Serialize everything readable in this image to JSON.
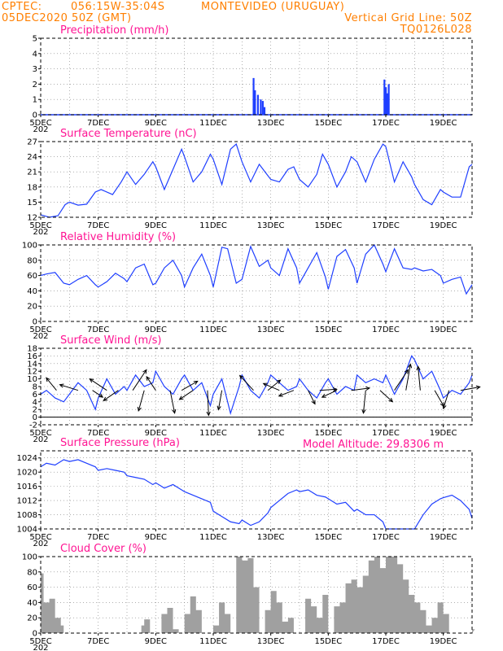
{
  "header": {
    "source": "CPTEC:",
    "coords": "056:15W-35:04S",
    "location": "MONTEVIDEO (URUGUAY)",
    "init": "05DEC2020 50Z (GMT)",
    "grid_note": "Vertical Grid Line: 50Z",
    "code": "TQ0126L028"
  },
  "x_ticks": [
    "5DEC",
    "7DEC",
    "9DEC",
    "11DEC",
    "13DEC",
    "15DEC",
    "17DEC",
    "19DEC"
  ],
  "x_year_fragment": "202",
  "model_altitude": "Model Altitude: 29.8306 m",
  "colors": {
    "header": "#ff7f00",
    "title": "#ff1493",
    "line": "#1f3fff",
    "bar": "#1f3fff",
    "cloud": "#a0a0a0"
  },
  "chart_data": [
    {
      "id": "precip",
      "type": "bar",
      "title": "Precipitation (mm/h)",
      "ylim": [
        0,
        5
      ],
      "yticks": [
        "0",
        "1",
        "2",
        "3",
        "4",
        "5"
      ],
      "x": [
        12.4,
        12.45,
        12.55,
        12.65,
        12.72,
        12.78,
        16.95,
        17.0,
        17.05,
        17.1
      ],
      "values": [
        2.4,
        1.6,
        1.3,
        1.0,
        0.9,
        0.5,
        2.3,
        1.8,
        1.4,
        2.0
      ]
    },
    {
      "id": "temp",
      "type": "line",
      "title": "Surface Temperature (nC)",
      "ylim": [
        12,
        27
      ],
      "yticks": [
        "12",
        "15",
        "18",
        "21",
        "24",
        "27"
      ],
      "x": [
        5.0,
        5.3,
        5.6,
        5.85,
        6.0,
        6.3,
        6.6,
        6.9,
        7.1,
        7.5,
        7.8,
        8.0,
        8.3,
        8.6,
        8.9,
        9.0,
        9.3,
        9.6,
        9.9,
        10.0,
        10.3,
        10.6,
        10.9,
        11.0,
        11.3,
        11.6,
        11.8,
        12.0,
        12.3,
        12.6,
        12.8,
        13.0,
        13.3,
        13.6,
        13.8,
        14.0,
        14.3,
        14.6,
        14.8,
        15.0,
        15.3,
        15.6,
        15.8,
        16.0,
        16.3,
        16.6,
        16.9,
        17.0,
        17.3,
        17.6,
        17.9,
        18.0,
        18.3,
        18.6,
        18.9,
        19.0,
        19.3,
        19.6,
        19.9,
        20.0
      ],
      "values": [
        12.5,
        12.0,
        12.3,
        14.5,
        15.0,
        14.4,
        14.6,
        17.0,
        17.5,
        16.5,
        19.0,
        21.0,
        18.5,
        20.5,
        23.0,
        22.0,
        17.5,
        21.5,
        25.5,
        24.0,
        19.0,
        21.0,
        24.5,
        23.5,
        18.5,
        25.5,
        26.5,
        23.0,
        19.0,
        22.5,
        21.0,
        19.5,
        19.0,
        21.5,
        22.0,
        19.5,
        18.0,
        20.5,
        24.5,
        22.5,
        18.0,
        21.0,
        24.0,
        23.0,
        19.0,
        23.5,
        26.5,
        26.0,
        19.0,
        23.0,
        20.0,
        18.5,
        15.5,
        14.5,
        17.5,
        17.0,
        16.0,
        16.0,
        22.0,
        22.5
      ]
    },
    {
      "id": "rh",
      "type": "line",
      "title": "Relative Humidity (%)",
      "ylim": [
        0,
        100
      ],
      "yticks": [
        "0",
        "20",
        "40",
        "60",
        "80",
        "100"
      ],
      "x": [
        5.0,
        5.2,
        5.5,
        5.8,
        6.0,
        6.3,
        6.6,
        6.9,
        7.0,
        7.3,
        7.6,
        7.9,
        8.0,
        8.3,
        8.6,
        8.9,
        9.0,
        9.3,
        9.6,
        9.9,
        10.0,
        10.3,
        10.6,
        10.9,
        11.0,
        11.3,
        11.5,
        11.8,
        12.0,
        12.3,
        12.6,
        12.9,
        13.0,
        13.3,
        13.6,
        13.9,
        14.0,
        14.3,
        14.6,
        14.9,
        15.0,
        15.3,
        15.6,
        15.9,
        16.0,
        16.3,
        16.6,
        16.9,
        17.0,
        17.3,
        17.6,
        17.9,
        18.0,
        18.3,
        18.6,
        18.9,
        19.0,
        19.3,
        19.6,
        19.8,
        20.0
      ],
      "values": [
        60,
        62,
        64,
        50,
        48,
        55,
        60,
        48,
        45,
        52,
        63,
        56,
        52,
        70,
        75,
        48,
        50,
        70,
        80,
        60,
        45,
        70,
        88,
        60,
        45,
        97,
        95,
        50,
        55,
        98,
        72,
        80,
        70,
        60,
        95,
        70,
        50,
        70,
        90,
        58,
        42,
        85,
        94,
        70,
        50,
        88,
        100,
        75,
        65,
        95,
        70,
        68,
        70,
        66,
        68,
        60,
        50,
        55,
        58,
        36,
        48
      ]
    },
    {
      "id": "wind",
      "type": "line",
      "title": "Surface Wind (m/s)",
      "ylim": [
        -2,
        18
      ],
      "yticks": [
        "-2",
        "0",
        "2",
        "4",
        "6",
        "8",
        "10",
        "12",
        "14",
        "16",
        "18"
      ],
      "x": [
        5.0,
        5.2,
        5.5,
        5.8,
        6.0,
        6.3,
        6.6,
        6.9,
        7.0,
        7.3,
        7.6,
        7.9,
        8.0,
        8.3,
        8.6,
        8.9,
        9.0,
        9.3,
        9.6,
        9.9,
        10.0,
        10.3,
        10.6,
        10.9,
        11.0,
        11.3,
        11.6,
        11.9,
        12.0,
        12.3,
        12.6,
        12.9,
        13.0,
        13.3,
        13.6,
        13.9,
        14.0,
        14.3,
        14.6,
        14.9,
        15.0,
        15.3,
        15.6,
        15.9,
        16.0,
        16.3,
        16.6,
        16.9,
        17.0,
        17.3,
        17.6,
        17.9,
        18.0,
        18.3,
        18.6,
        18.9,
        19.0,
        19.3,
        19.6,
        19.9,
        20.0
      ],
      "values": [
        6,
        7,
        5,
        4,
        6,
        9,
        7,
        2,
        5,
        10,
        6,
        8,
        7,
        11,
        8,
        9,
        12,
        8,
        6,
        10,
        11,
        7,
        9,
        3,
        6,
        10,
        1,
        8,
        11,
        7,
        5,
        9,
        11,
        9,
        7,
        8,
        10,
        7,
        5,
        9,
        10,
        6,
        8,
        7,
        11,
        9,
        10,
        9,
        11,
        6,
        10,
        16,
        15,
        10,
        12,
        7,
        5,
        7,
        6,
        9,
        11
      ]
    },
    {
      "id": "pressure",
      "type": "line",
      "title": "Surface Pressure (hPa)",
      "ylim": [
        1004,
        1026
      ],
      "yticks": [
        "1004",
        "1008",
        "1012",
        "1016",
        "1020",
        "1024"
      ],
      "x": [
        5.0,
        5.2,
        5.5,
        5.8,
        6.0,
        6.3,
        6.6,
        6.9,
        7.0,
        7.3,
        7.6,
        7.9,
        8.0,
        8.3,
        8.6,
        8.9,
        9.0,
        9.3,
        9.6,
        9.9,
        10.0,
        10.3,
        10.6,
        10.9,
        11.0,
        11.3,
        11.6,
        11.9,
        12.0,
        12.3,
        12.6,
        12.9,
        13.0,
        13.3,
        13.6,
        13.9,
        14.0,
        14.3,
        14.6,
        14.9,
        15.0,
        15.3,
        15.6,
        15.9,
        16.0,
        16.3,
        16.6,
        16.9,
        17.0,
        17.3,
        17.6,
        17.9,
        18.0,
        18.3,
        18.6,
        18.9,
        19.0,
        19.3,
        19.6,
        19.9,
        20.0
      ],
      "values": [
        1021.5,
        1022.5,
        1022.0,
        1023.5,
        1023.0,
        1023.5,
        1022.5,
        1021.5,
        1020.5,
        1021.0,
        1020.5,
        1020.0,
        1019.0,
        1018.5,
        1018.0,
        1016.5,
        1017.0,
        1015.5,
        1016.5,
        1015.0,
        1014.5,
        1013.5,
        1012.5,
        1011.5,
        1009.0,
        1007.5,
        1006.0,
        1005.5,
        1006.5,
        1005.0,
        1006.0,
        1008.5,
        1010.0,
        1012.0,
        1014.0,
        1015.0,
        1014.5,
        1015.0,
        1013.5,
        1013.0,
        1012.5,
        1011.0,
        1011.5,
        1009.0,
        1009.5,
        1008.0,
        1008.0,
        1006.0,
        1004.0,
        1003.8,
        1003.8,
        1003.8,
        1003.8,
        1008.0,
        1011.0,
        1012.5,
        1012.8,
        1013.5,
        1012.0,
        1009.5,
        1007.0
      ]
    },
    {
      "id": "cloud",
      "type": "area",
      "title": "Cloud Cover (%)",
      "ylim": [
        0,
        100
      ],
      "yticks": [
        "0",
        "20",
        "40",
        "60",
        "80",
        "100"
      ],
      "x": [
        5.0,
        5.1,
        5.3,
        5.5,
        5.7,
        5.8,
        6.0,
        6.5,
        7.0,
        7.5,
        8.0,
        8.5,
        8.6,
        8.8,
        9.0,
        9.2,
        9.4,
        9.6,
        9.8,
        10.0,
        10.2,
        10.4,
        10.6,
        10.8,
        11.0,
        11.2,
        11.4,
        11.6,
        11.8,
        12.0,
        12.2,
        12.4,
        12.6,
        12.8,
        13.0,
        13.2,
        13.4,
        13.6,
        13.8,
        14.0,
        14.2,
        14.4,
        14.6,
        14.8,
        15.0,
        15.2,
        15.4,
        15.6,
        15.8,
        16.0,
        16.2,
        16.4,
        16.6,
        16.8,
        17.0,
        17.2,
        17.4,
        17.6,
        17.8,
        18.0,
        18.2,
        18.4,
        18.6,
        18.8,
        19.0,
        19.2,
        19.4,
        19.6,
        19.8,
        20.0
      ],
      "values": [
        78,
        40,
        45,
        20,
        10,
        0,
        0,
        0,
        0,
        0,
        0,
        10,
        18,
        0,
        0,
        25,
        33,
        5,
        0,
        25,
        48,
        30,
        0,
        0,
        10,
        40,
        25,
        0,
        100,
        95,
        98,
        60,
        0,
        30,
        55,
        40,
        15,
        20,
        0,
        0,
        45,
        35,
        20,
        50,
        0,
        35,
        40,
        65,
        70,
        60,
        75,
        95,
        100,
        85,
        100,
        100,
        90,
        70,
        50,
        40,
        30,
        10,
        20,
        40,
        25,
        0,
        0,
        0,
        0,
        5
      ]
    }
  ],
  "wind_arrows": [
    {
      "x": 5.55,
      "u": -0.9,
      "v": 1.1
    },
    {
      "x": 6.3,
      "u": -1.6,
      "v": 0.5
    },
    {
      "x": 6.8,
      "u": 0.9,
      "v": -0.6
    },
    {
      "x": 7.3,
      "u": -1.5,
      "v": 1.0
    },
    {
      "x": 7.7,
      "u": -1.3,
      "v": -0.9
    },
    {
      "x": 8.2,
      "u": 1.2,
      "v": 1.8
    },
    {
      "x": 8.6,
      "u": -0.5,
      "v": -1.8
    },
    {
      "x": 9.0,
      "u": -0.8,
      "v": 1.2
    },
    {
      "x": 9.5,
      "u": 0.4,
      "v": -2.0
    },
    {
      "x": 9.9,
      "u": 1.4,
      "v": 0.8
    },
    {
      "x": 10.3,
      "u": -1.2,
      "v": -0.8
    },
    {
      "x": 10.8,
      "u": 0.1,
      "v": -2.2
    },
    {
      "x": 11.3,
      "u": -0.3,
      "v": -1.7
    },
    {
      "x": 12.4,
      "u": -1.2,
      "v": 1.3
    },
    {
      "x": 12.9,
      "u": 1.1,
      "v": 0.9
    },
    {
      "x": 13.3,
      "u": -1.4,
      "v": 0.6
    },
    {
      "x": 13.8,
      "u": -1.3,
      "v": -0.5
    },
    {
      "x": 14.3,
      "u": 0.6,
      "v": -1.2
    },
    {
      "x": 14.7,
      "u": 1.5,
      "v": 0.1
    },
    {
      "x": 15.3,
      "u": -1.3,
      "v": -0.6
    },
    {
      "x": 15.8,
      "u": 1.6,
      "v": 0.2
    },
    {
      "x": 16.3,
      "u": -0.2,
      "v": -2.0
    },
    {
      "x": 16.8,
      "u": 1.1,
      "v": -1.0
    },
    {
      "x": 17.3,
      "u": 1.2,
      "v": 1.8
    },
    {
      "x": 17.7,
      "u": 0.4,
      "v": 2.3
    },
    {
      "x": 18.2,
      "u": -0.2,
      "v": 2.1
    },
    {
      "x": 18.7,
      "u": 0.8,
      "v": -1.4
    },
    {
      "x": 19.2,
      "u": -0.5,
      "v": -1.6
    },
    {
      "x": 19.6,
      "u": 1.7,
      "v": 0.3
    }
  ]
}
